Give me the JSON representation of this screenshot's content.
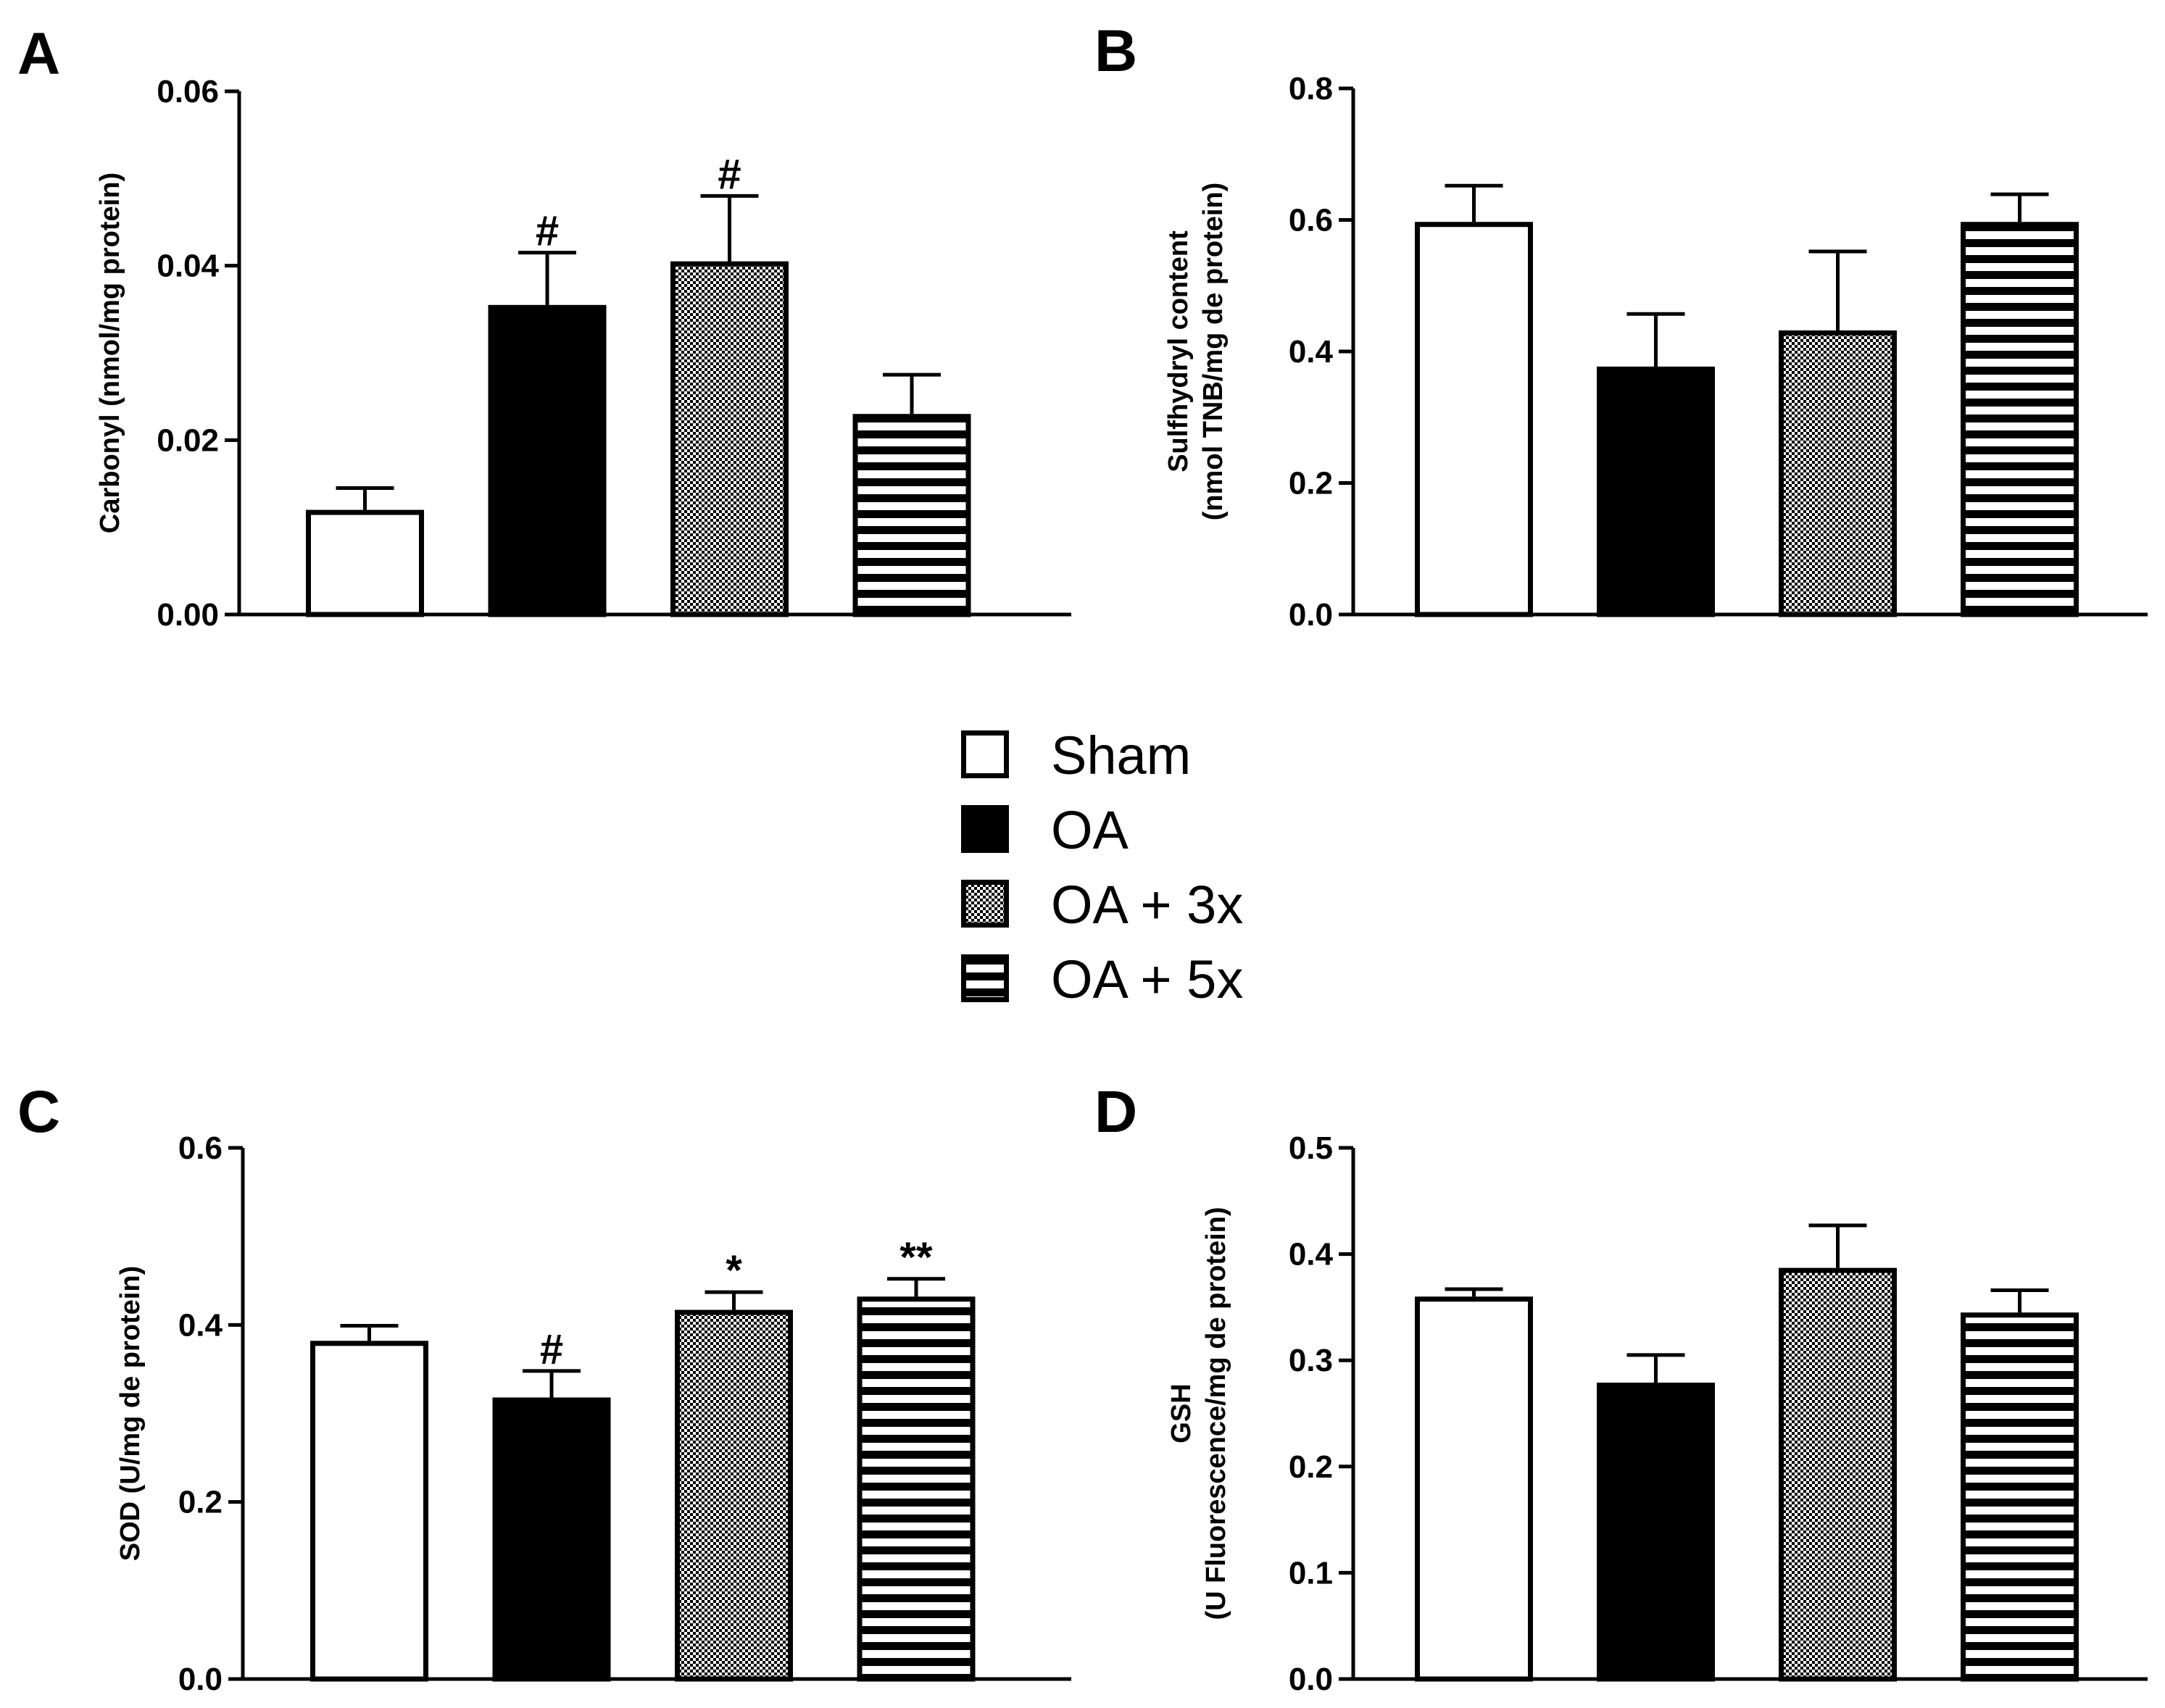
{
  "legend": {
    "items": [
      {
        "label": "Sham",
        "pattern": "white"
      },
      {
        "label": "OA",
        "pattern": "black"
      },
      {
        "label": "OA + 3x",
        "pattern": "checker"
      },
      {
        "label": "OA + 5x",
        "pattern": "stripes"
      }
    ]
  },
  "chart_data": [
    {
      "panel": "A",
      "type": "bar",
      "categories": [
        "Sham",
        "OA",
        "OA + 3x",
        "OA + 5x"
      ],
      "values": [
        0.012,
        0.0355,
        0.0405,
        0.023
      ],
      "errors": [
        0.0025,
        0.006,
        0.0075,
        0.0045
      ],
      "annotations": [
        "",
        "#",
        "#",
        ""
      ],
      "ylabel_lines": [
        "Carbonyl (nmol/mg protein)"
      ],
      "ylim": [
        0,
        0.06
      ],
      "yticks": [
        0.0,
        0.02,
        0.04,
        0.06
      ],
      "yticklabels": [
        "0.00",
        "0.02",
        "0.04",
        "0.06"
      ],
      "xlabel": "",
      "grid": false
    },
    {
      "panel": "B",
      "type": "bar",
      "categories": [
        "Sham",
        "OA",
        "OA + 3x",
        "OA + 5x"
      ],
      "values": [
        0.597,
        0.377,
        0.432,
        0.597
      ],
      "errors": [
        0.055,
        0.08,
        0.12,
        0.042
      ],
      "annotations": [
        "",
        "",
        "",
        ""
      ],
      "ylabel_lines": [
        "Sulfhydryl content",
        "(nmol TNB/mg de protein)"
      ],
      "ylim": [
        0,
        0.8
      ],
      "yticks": [
        0.0,
        0.2,
        0.4,
        0.6,
        0.8
      ],
      "yticklabels": [
        "0.0",
        "0.2",
        "0.4",
        "0.6",
        "0.8"
      ],
      "xlabel": "",
      "grid": false
    },
    {
      "panel": "C",
      "type": "bar",
      "categories": [
        "Sham",
        "OA",
        "OA + 3x",
        "OA + 5x"
      ],
      "values": [
        0.382,
        0.318,
        0.417,
        0.432
      ],
      "errors": [
        0.017,
        0.03,
        0.02,
        0.02
      ],
      "annotations": [
        "",
        "#",
        "*",
        "**"
      ],
      "ylabel_lines": [
        "SOD (U/mg de protein)"
      ],
      "ylim": [
        0,
        0.6
      ],
      "yticks": [
        0.0,
        0.2,
        0.4,
        0.6
      ],
      "yticklabels": [
        "0.0",
        "0.2",
        "0.4",
        "0.6"
      ],
      "xlabel": "",
      "grid": false
    },
    {
      "panel": "D",
      "type": "bar",
      "categories": [
        "Sham",
        "OA",
        "OA + 3x",
        "OA + 5x"
      ],
      "values": [
        0.36,
        0.279,
        0.387,
        0.345
      ],
      "errors": [
        0.007,
        0.026,
        0.04,
        0.021
      ],
      "annotations": [
        "",
        "",
        "",
        ""
      ],
      "ylabel_lines": [
        "GSH",
        "(U Fluorescence/mg de protein)"
      ],
      "ylim": [
        0,
        0.5
      ],
      "yticks": [
        0.0,
        0.1,
        0.2,
        0.3,
        0.4,
        0.5
      ],
      "yticklabels": [
        "0.0",
        "0.1",
        "0.2",
        "0.3",
        "0.4",
        "0.5"
      ],
      "xlabel": "",
      "grid": false
    }
  ]
}
